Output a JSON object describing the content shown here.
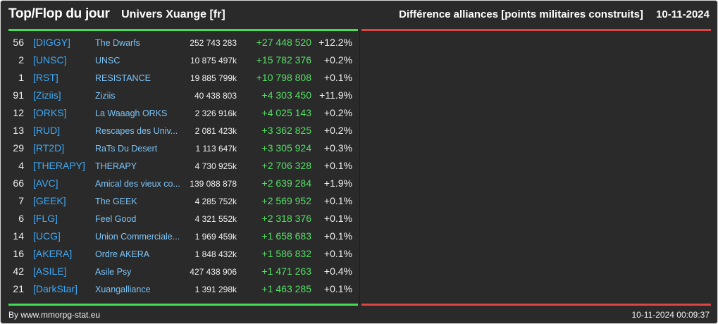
{
  "header": {
    "title": "Top/Flop du jour",
    "universe": "Univers Xuange [fr]",
    "subtitle": "Différence alliances [points militaires construits]",
    "date": "10-11-2024"
  },
  "colors": {
    "top_accent": "#44dd55",
    "flop_accent": "#dd4444",
    "tag": "#3fa9f5",
    "name": "#7cc4f7",
    "positive_diff": "#55e066",
    "background": "#2a2a2a"
  },
  "top_rows": [
    {
      "rank": "56",
      "tag": "[DIGGY]",
      "name": "The Dwarfs",
      "points": "252 743 283",
      "diff": "+27 448 520",
      "pct": "+12.2%"
    },
    {
      "rank": "2",
      "tag": "[UNSC]",
      "name": "UNSC",
      "points": "10 875 497k",
      "diff": "+15 782 376",
      "pct": "+0.2%"
    },
    {
      "rank": "1",
      "tag": "[RST]",
      "name": "RESISTANCE",
      "points": "19 885 799k",
      "diff": "+10 798 808",
      "pct": "+0.1%"
    },
    {
      "rank": "91",
      "tag": "[Ziziis]",
      "name": "Ziziis",
      "points": "40 438 803",
      "diff": "+4 303 450",
      "pct": "+11.9%"
    },
    {
      "rank": "12",
      "tag": "[ORKS]",
      "name": "La Waaagh ORKS",
      "points": "2 326 916k",
      "diff": "+4 025 143",
      "pct": "+0.2%"
    },
    {
      "rank": "13",
      "tag": "[RUD]",
      "name": "Rescapes des Univ...",
      "points": "2 081 423k",
      "diff": "+3 362 825",
      "pct": "+0.2%"
    },
    {
      "rank": "29",
      "tag": "[RT2D]",
      "name": "RaTs Du Desert",
      "points": "1 113 647k",
      "diff": "+3 305 924",
      "pct": "+0.3%"
    },
    {
      "rank": "4",
      "tag": "[THERAPY]",
      "name": "THERAPY",
      "points": "4 730 925k",
      "diff": "+2 706 328",
      "pct": "+0.1%"
    },
    {
      "rank": "66",
      "tag": "[AVC]",
      "name": "Amical des vieux co...",
      "points": "139 088 878",
      "diff": "+2 639 284",
      "pct": "+1.9%"
    },
    {
      "rank": "7",
      "tag": "[GEEK]",
      "name": "The GEEK",
      "points": "4 285 752k",
      "diff": "+2 569 952",
      "pct": "+0.1%"
    },
    {
      "rank": "6",
      "tag": "[FLG]",
      "name": "Feel Good",
      "points": "4 321 552k",
      "diff": "+2 318 376",
      "pct": "+0.1%"
    },
    {
      "rank": "14",
      "tag": "[UCG]",
      "name": "Union Commerciale...",
      "points": "1 969 459k",
      "diff": "+1 658 683",
      "pct": "+0.1%"
    },
    {
      "rank": "16",
      "tag": "[AKERA]",
      "name": "Ordre AKERA",
      "points": "1 848 432k",
      "diff": "+1 586 832",
      "pct": "+0.1%"
    },
    {
      "rank": "42",
      "tag": "[ASILE]",
      "name": "Asile Psy",
      "points": "427 438 906",
      "diff": "+1 471 263",
      "pct": "+0.4%"
    },
    {
      "rank": "21",
      "tag": "[DarkStar]",
      "name": "Xuangalliance",
      "points": "1 391 298k",
      "diff": "+1 463 285",
      "pct": "+0.1%"
    }
  ],
  "footer": {
    "credit": "By www.mmorpg-stat.eu",
    "timestamp": "10-11-2024 00:09:37"
  }
}
